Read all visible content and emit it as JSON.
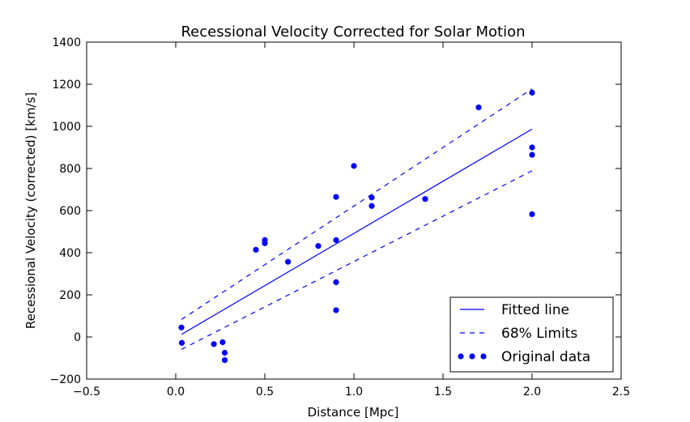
{
  "chart_data": {
    "type": "scatter",
    "title": "Recessional Velocity Corrected for Solar Motion",
    "xlabel": "Distance [Mpc]",
    "ylabel": "Recessional Velocity (corrected) [km/s]",
    "xlim": [
      -0.5,
      2.5
    ],
    "ylim": [
      -200,
      1400
    ],
    "xticks": [
      -0.5,
      0.0,
      0.5,
      1.0,
      1.5,
      2.0,
      2.5
    ],
    "xtick_labels": [
      "−0.5",
      "0.0",
      "0.5",
      "1.0",
      "1.5",
      "2.0",
      "2.5"
    ],
    "yticks": [
      -200,
      0,
      200,
      400,
      600,
      800,
      1000,
      1200,
      1400
    ],
    "ytick_labels": [
      "−200",
      "0",
      "200",
      "400",
      "600",
      "800",
      "1000",
      "1200",
      "1400"
    ],
    "grid": false,
    "legend_position": "lower-right",
    "color": "#0000ff",
    "series": [
      {
        "name": "Fitted line",
        "kind": "line",
        "style": "solid",
        "x": [
          0.032,
          2.0
        ],
        "y": [
          12,
          987
        ]
      },
      {
        "name": "68% Limits",
        "kind": "line",
        "style": "dashed",
        "x": [
          0.032,
          2.0
        ],
        "y": [
          83,
          1178
        ]
      },
      {
        "name": "68% Limits",
        "kind": "line",
        "style": "dashed",
        "x": [
          0.032,
          2.0
        ],
        "y": [
          -59,
          789
        ],
        "legend": false
      },
      {
        "name": "Original data",
        "kind": "scatter",
        "x": [
          0.032,
          0.034,
          0.214,
          0.263,
          0.275,
          0.275,
          0.45,
          0.5,
          0.5,
          0.63,
          0.8,
          0.9,
          0.9,
          0.9,
          0.9,
          1.0,
          1.1,
          1.1,
          1.4,
          1.7,
          2.0,
          2.0,
          2.0,
          2.0
        ],
        "y": [
          45,
          -28,
          -34,
          -25,
          -75,
          -110,
          414,
          460,
          445,
          357,
          432,
          665,
          460,
          260,
          127,
          812,
          662,
          622,
          655,
          1090,
          1160,
          900,
          865,
          583
        ]
      }
    ]
  }
}
